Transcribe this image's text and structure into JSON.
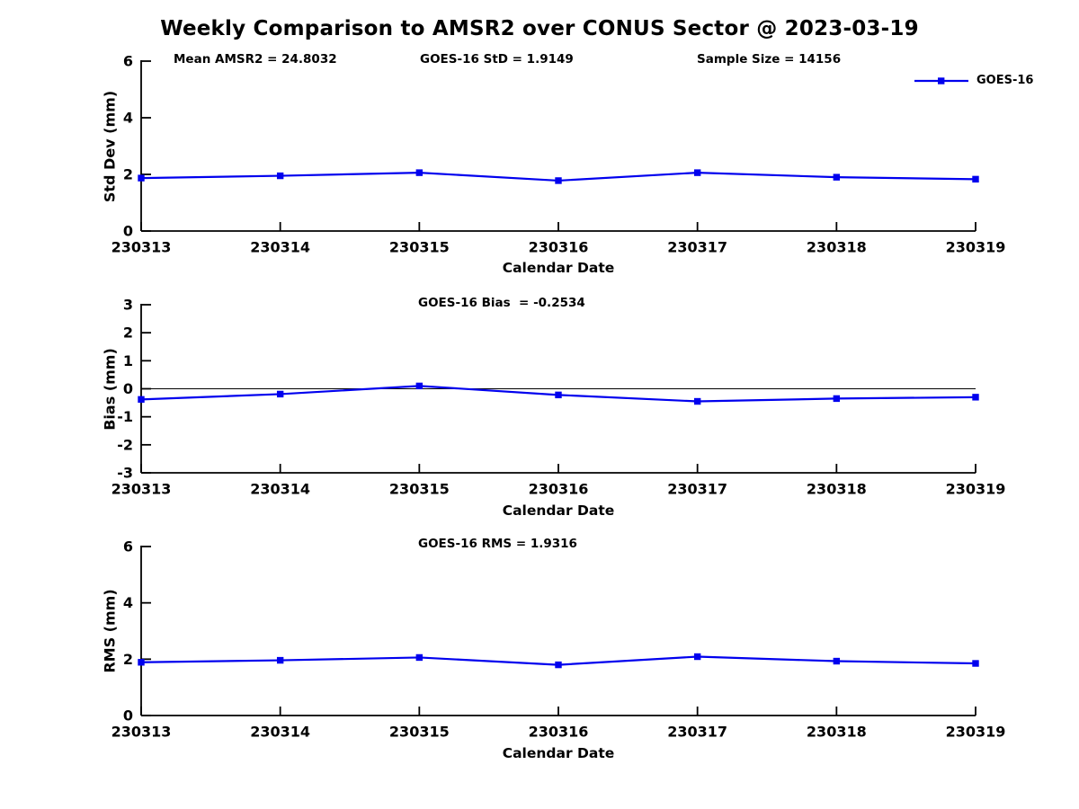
{
  "title": "Weekly Comparison to AMSR2 over CONUS Sector @ 2023-03-19",
  "legend": {
    "label": "GOES-16",
    "color": "#0000EE"
  },
  "annotations": {
    "mean_amsr2": "Mean AMSR2 = 24.8032",
    "goes16_std": "GOES-16 StD = 1.9149",
    "sample_size": "Sample Size = 14156",
    "goes16_bias": "GOES-16 Bias  = -0.2534",
    "goes16_rms": "GOES-16 RMS = 1.9316"
  },
  "chart_data": [
    {
      "type": "line",
      "name": "std-dev",
      "series_name": "GOES-16",
      "categories": [
        "230313",
        "230314",
        "230315",
        "230316",
        "230317",
        "230318",
        "230319"
      ],
      "values": [
        1.87,
        1.95,
        2.06,
        1.78,
        2.06,
        1.9,
        1.83
      ],
      "xlabel": "Calendar Date",
      "ylabel": "Std Dev (mm)",
      "ylim": [
        0,
        6
      ],
      "yticks": [
        0,
        2,
        4,
        6
      ],
      "zero_line": false,
      "grid": false,
      "marker": "square",
      "annotation_left": "Mean AMSR2 = 24.8032",
      "annotation_center": "GOES-16 StD = 1.9149",
      "annotation_right": "Sample Size = 14156",
      "legend_position": "top-right"
    },
    {
      "type": "line",
      "name": "bias",
      "series_name": "GOES-16",
      "categories": [
        "230313",
        "230314",
        "230315",
        "230316",
        "230317",
        "230318",
        "230319"
      ],
      "values": [
        -0.38,
        -0.19,
        0.1,
        -0.22,
        -0.45,
        -0.35,
        -0.3
      ],
      "xlabel": "Calendar Date",
      "ylabel": "Bias (mm)",
      "ylim": [
        -3,
        3
      ],
      "yticks": [
        -3,
        -2,
        -1,
        0,
        1,
        2,
        3
      ],
      "zero_line": true,
      "grid": false,
      "marker": "square",
      "annotation_center": "GOES-16 Bias  = -0.2534"
    },
    {
      "type": "line",
      "name": "rms",
      "series_name": "GOES-16",
      "categories": [
        "230313",
        "230314",
        "230315",
        "230316",
        "230317",
        "230318",
        "230319"
      ],
      "values": [
        1.89,
        1.96,
        2.06,
        1.8,
        2.09,
        1.93,
        1.85
      ],
      "xlabel": "Calendar Date",
      "ylabel": "RMS (mm)",
      "ylim": [
        0,
        6
      ],
      "yticks": [
        0,
        2,
        4,
        6
      ],
      "zero_line": false,
      "grid": false,
      "marker": "square",
      "annotation_center": "GOES-16 RMS = 1.9316"
    }
  ]
}
